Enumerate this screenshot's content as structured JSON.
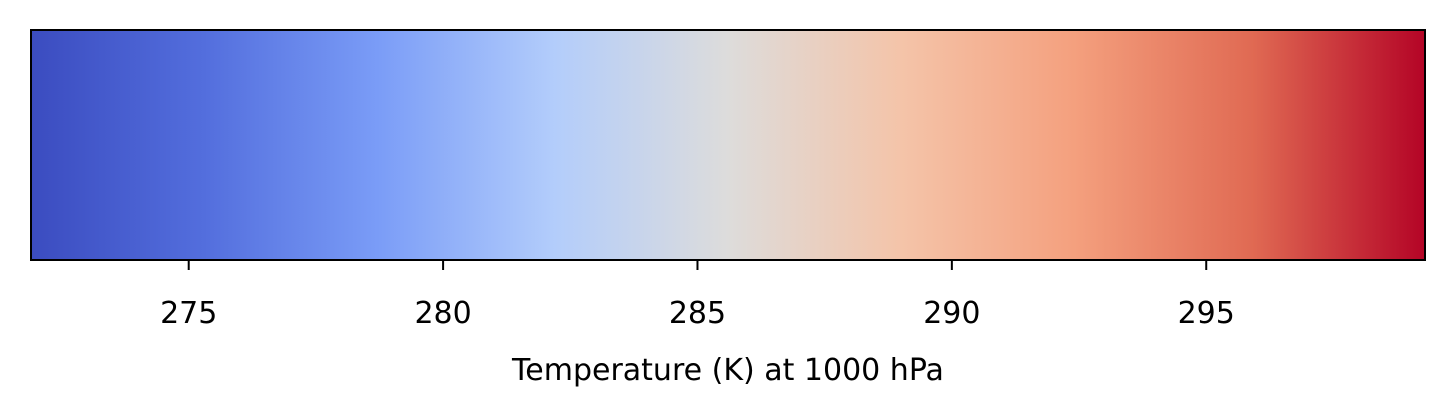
{
  "chart_data": {
    "type": "colorbar",
    "orientation": "horizontal",
    "colormap": "coolwarm",
    "xlabel": "Temperature (K) at 1000 hPa",
    "xlim": [
      271.9,
      299.3
    ],
    "ticks": [
      275,
      280,
      285,
      290,
      295
    ],
    "tick_labels": [
      "275",
      "280",
      "285",
      "290",
      "295"
    ],
    "color_stops": [
      {
        "value": 271.9,
        "color": "#3b4cc0"
      },
      {
        "value": 275.3,
        "color": "#536edd"
      },
      {
        "value": 278.7,
        "color": "#7a9cf7"
      },
      {
        "value": 282.2,
        "color": "#b3cdfb"
      },
      {
        "value": 285.6,
        "color": "#dddcdb"
      },
      {
        "value": 289.0,
        "color": "#f4c4a9"
      },
      {
        "value": 292.4,
        "color": "#f4a07e"
      },
      {
        "value": 295.9,
        "color": "#e06a53"
      },
      {
        "value": 299.3,
        "color": "#b40426"
      }
    ],
    "frame_color": "#000000"
  }
}
